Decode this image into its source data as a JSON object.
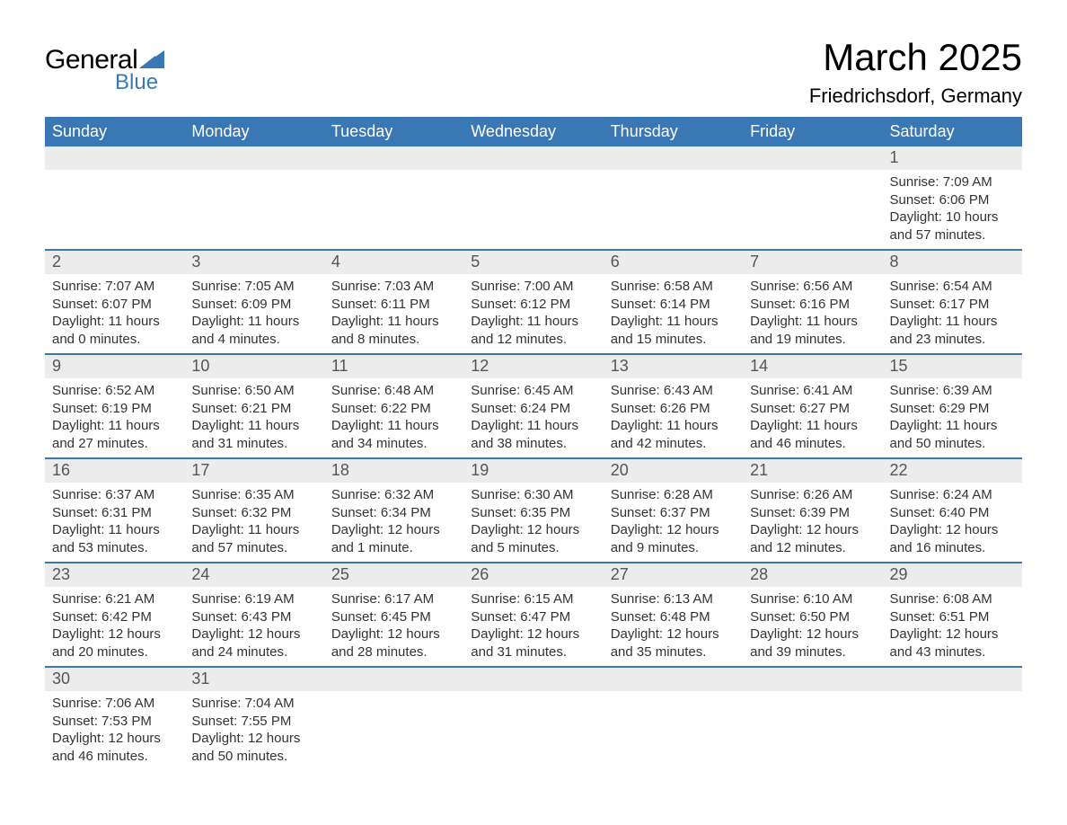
{
  "brand": {
    "word1": "General",
    "word2": "Blue",
    "flag_color": "#3a78b5"
  },
  "title": "March 2025",
  "location": "Friedrichsdorf, Germany",
  "colors": {
    "header_bg": "#3a78b5",
    "header_text": "#ffffff",
    "daynum_bg": "#ececec",
    "daynum_text": "#555555",
    "body_text": "#333333",
    "rule": "#3a78b5"
  },
  "daynames": [
    "Sunday",
    "Monday",
    "Tuesday",
    "Wednesday",
    "Thursday",
    "Friday",
    "Saturday"
  ],
  "weeks": [
    [
      {
        "n": "",
        "sr": "",
        "ss": "",
        "dl1": "",
        "dl2": ""
      },
      {
        "n": "",
        "sr": "",
        "ss": "",
        "dl1": "",
        "dl2": ""
      },
      {
        "n": "",
        "sr": "",
        "ss": "",
        "dl1": "",
        "dl2": ""
      },
      {
        "n": "",
        "sr": "",
        "ss": "",
        "dl1": "",
        "dl2": ""
      },
      {
        "n": "",
        "sr": "",
        "ss": "",
        "dl1": "",
        "dl2": ""
      },
      {
        "n": "",
        "sr": "",
        "ss": "",
        "dl1": "",
        "dl2": ""
      },
      {
        "n": "1",
        "sr": "Sunrise: 7:09 AM",
        "ss": "Sunset: 6:06 PM",
        "dl1": "Daylight: 10 hours",
        "dl2": "and 57 minutes."
      }
    ],
    [
      {
        "n": "2",
        "sr": "Sunrise: 7:07 AM",
        "ss": "Sunset: 6:07 PM",
        "dl1": "Daylight: 11 hours",
        "dl2": "and 0 minutes."
      },
      {
        "n": "3",
        "sr": "Sunrise: 7:05 AM",
        "ss": "Sunset: 6:09 PM",
        "dl1": "Daylight: 11 hours",
        "dl2": "and 4 minutes."
      },
      {
        "n": "4",
        "sr": "Sunrise: 7:03 AM",
        "ss": "Sunset: 6:11 PM",
        "dl1": "Daylight: 11 hours",
        "dl2": "and 8 minutes."
      },
      {
        "n": "5",
        "sr": "Sunrise: 7:00 AM",
        "ss": "Sunset: 6:12 PM",
        "dl1": "Daylight: 11 hours",
        "dl2": "and 12 minutes."
      },
      {
        "n": "6",
        "sr": "Sunrise: 6:58 AM",
        "ss": "Sunset: 6:14 PM",
        "dl1": "Daylight: 11 hours",
        "dl2": "and 15 minutes."
      },
      {
        "n": "7",
        "sr": "Sunrise: 6:56 AM",
        "ss": "Sunset: 6:16 PM",
        "dl1": "Daylight: 11 hours",
        "dl2": "and 19 minutes."
      },
      {
        "n": "8",
        "sr": "Sunrise: 6:54 AM",
        "ss": "Sunset: 6:17 PM",
        "dl1": "Daylight: 11 hours",
        "dl2": "and 23 minutes."
      }
    ],
    [
      {
        "n": "9",
        "sr": "Sunrise: 6:52 AM",
        "ss": "Sunset: 6:19 PM",
        "dl1": "Daylight: 11 hours",
        "dl2": "and 27 minutes."
      },
      {
        "n": "10",
        "sr": "Sunrise: 6:50 AM",
        "ss": "Sunset: 6:21 PM",
        "dl1": "Daylight: 11 hours",
        "dl2": "and 31 minutes."
      },
      {
        "n": "11",
        "sr": "Sunrise: 6:48 AM",
        "ss": "Sunset: 6:22 PM",
        "dl1": "Daylight: 11 hours",
        "dl2": "and 34 minutes."
      },
      {
        "n": "12",
        "sr": "Sunrise: 6:45 AM",
        "ss": "Sunset: 6:24 PM",
        "dl1": "Daylight: 11 hours",
        "dl2": "and 38 minutes."
      },
      {
        "n": "13",
        "sr": "Sunrise: 6:43 AM",
        "ss": "Sunset: 6:26 PM",
        "dl1": "Daylight: 11 hours",
        "dl2": "and 42 minutes."
      },
      {
        "n": "14",
        "sr": "Sunrise: 6:41 AM",
        "ss": "Sunset: 6:27 PM",
        "dl1": "Daylight: 11 hours",
        "dl2": "and 46 minutes."
      },
      {
        "n": "15",
        "sr": "Sunrise: 6:39 AM",
        "ss": "Sunset: 6:29 PM",
        "dl1": "Daylight: 11 hours",
        "dl2": "and 50 minutes."
      }
    ],
    [
      {
        "n": "16",
        "sr": "Sunrise: 6:37 AM",
        "ss": "Sunset: 6:31 PM",
        "dl1": "Daylight: 11 hours",
        "dl2": "and 53 minutes."
      },
      {
        "n": "17",
        "sr": "Sunrise: 6:35 AM",
        "ss": "Sunset: 6:32 PM",
        "dl1": "Daylight: 11 hours",
        "dl2": "and 57 minutes."
      },
      {
        "n": "18",
        "sr": "Sunrise: 6:32 AM",
        "ss": "Sunset: 6:34 PM",
        "dl1": "Daylight: 12 hours",
        "dl2": "and 1 minute."
      },
      {
        "n": "19",
        "sr": "Sunrise: 6:30 AM",
        "ss": "Sunset: 6:35 PM",
        "dl1": "Daylight: 12 hours",
        "dl2": "and 5 minutes."
      },
      {
        "n": "20",
        "sr": "Sunrise: 6:28 AM",
        "ss": "Sunset: 6:37 PM",
        "dl1": "Daylight: 12 hours",
        "dl2": "and 9 minutes."
      },
      {
        "n": "21",
        "sr": "Sunrise: 6:26 AM",
        "ss": "Sunset: 6:39 PM",
        "dl1": "Daylight: 12 hours",
        "dl2": "and 12 minutes."
      },
      {
        "n": "22",
        "sr": "Sunrise: 6:24 AM",
        "ss": "Sunset: 6:40 PM",
        "dl1": "Daylight: 12 hours",
        "dl2": "and 16 minutes."
      }
    ],
    [
      {
        "n": "23",
        "sr": "Sunrise: 6:21 AM",
        "ss": "Sunset: 6:42 PM",
        "dl1": "Daylight: 12 hours",
        "dl2": "and 20 minutes."
      },
      {
        "n": "24",
        "sr": "Sunrise: 6:19 AM",
        "ss": "Sunset: 6:43 PM",
        "dl1": "Daylight: 12 hours",
        "dl2": "and 24 minutes."
      },
      {
        "n": "25",
        "sr": "Sunrise: 6:17 AM",
        "ss": "Sunset: 6:45 PM",
        "dl1": "Daylight: 12 hours",
        "dl2": "and 28 minutes."
      },
      {
        "n": "26",
        "sr": "Sunrise: 6:15 AM",
        "ss": "Sunset: 6:47 PM",
        "dl1": "Daylight: 12 hours",
        "dl2": "and 31 minutes."
      },
      {
        "n": "27",
        "sr": "Sunrise: 6:13 AM",
        "ss": "Sunset: 6:48 PM",
        "dl1": "Daylight: 12 hours",
        "dl2": "and 35 minutes."
      },
      {
        "n": "28",
        "sr": "Sunrise: 6:10 AM",
        "ss": "Sunset: 6:50 PM",
        "dl1": "Daylight: 12 hours",
        "dl2": "and 39 minutes."
      },
      {
        "n": "29",
        "sr": "Sunrise: 6:08 AM",
        "ss": "Sunset: 6:51 PM",
        "dl1": "Daylight: 12 hours",
        "dl2": "and 43 minutes."
      }
    ],
    [
      {
        "n": "30",
        "sr": "Sunrise: 7:06 AM",
        "ss": "Sunset: 7:53 PM",
        "dl1": "Daylight: 12 hours",
        "dl2": "and 46 minutes."
      },
      {
        "n": "31",
        "sr": "Sunrise: 7:04 AM",
        "ss": "Sunset: 7:55 PM",
        "dl1": "Daylight: 12 hours",
        "dl2": "and 50 minutes."
      },
      {
        "n": "",
        "sr": "",
        "ss": "",
        "dl1": "",
        "dl2": ""
      },
      {
        "n": "",
        "sr": "",
        "ss": "",
        "dl1": "",
        "dl2": ""
      },
      {
        "n": "",
        "sr": "",
        "ss": "",
        "dl1": "",
        "dl2": ""
      },
      {
        "n": "",
        "sr": "",
        "ss": "",
        "dl1": "",
        "dl2": ""
      },
      {
        "n": "",
        "sr": "",
        "ss": "",
        "dl1": "",
        "dl2": ""
      }
    ]
  ]
}
